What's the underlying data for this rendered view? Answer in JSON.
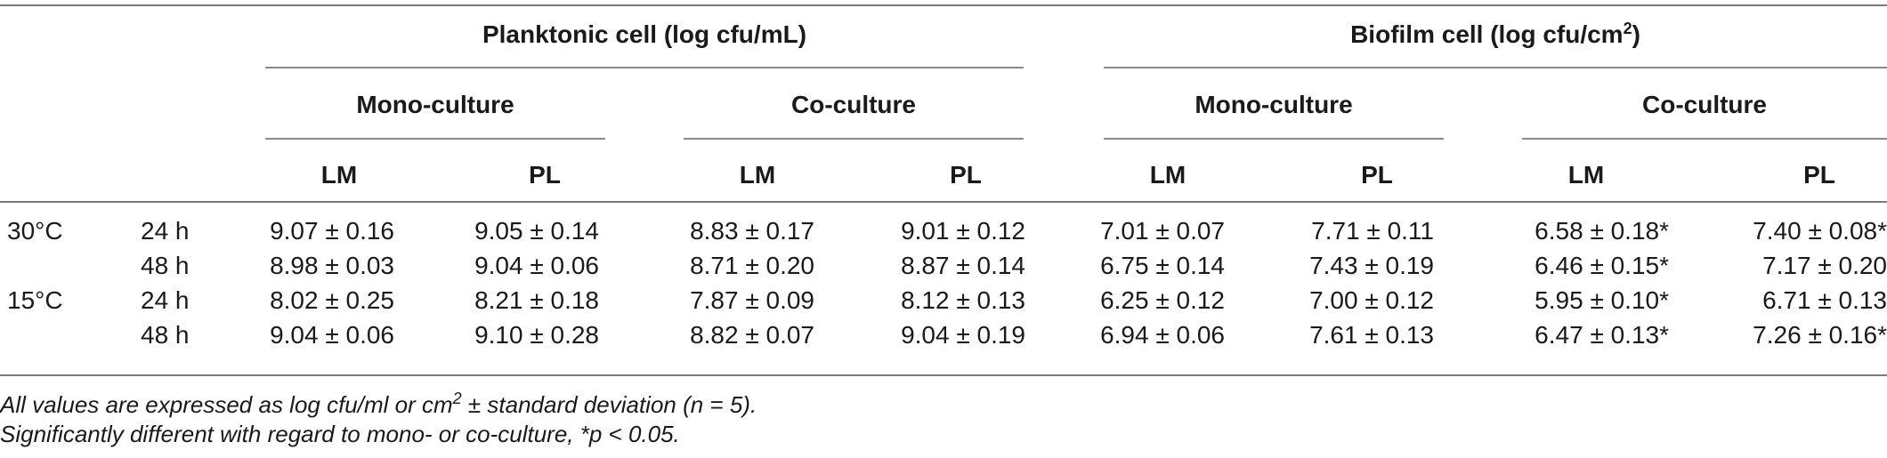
{
  "header": {
    "group1": "Planktonic cell (log cfu/mL)",
    "group2_prefix": "Biofilm cell (log cfu/cm",
    "group2_sup": "2",
    "group2_suffix": ")",
    "sub": [
      "Mono-culture",
      "Co-culture",
      "Mono-culture",
      "Co-culture"
    ],
    "cols": [
      "LM",
      "PL",
      "LM",
      "PL",
      "LM",
      "PL",
      "LM",
      "PL"
    ]
  },
  "rows": [
    {
      "temp": "30°C",
      "time": "24 h",
      "values": [
        "9.07 ± 0.16",
        "9.05 ± 0.14",
        "8.83 ± 0.17",
        "9.01 ± 0.12",
        "7.01 ± 0.07",
        "7.71 ± 0.11",
        "6.58 ± 0.18*",
        "7.40 ± 0.08*"
      ]
    },
    {
      "temp": "",
      "time": "48 h",
      "values": [
        "8.98 ± 0.03",
        "9.04 ± 0.06",
        "8.71 ± 0.20",
        "8.87 ± 0.14",
        "6.75 ± 0.14",
        "7.43 ± 0.19",
        "6.46 ± 0.15*",
        "7.17 ± 0.20"
      ]
    },
    {
      "temp": "15°C",
      "time": "24 h",
      "values": [
        "8.02 ± 0.25",
        "8.21 ± 0.18",
        "7.87 ± 0.09",
        "8.12 ± 0.13",
        "6.25 ± 0.12",
        "7.00 ± 0.12",
        "5.95 ± 0.10*",
        "6.71 ± 0.13"
      ]
    },
    {
      "temp": "",
      "time": "48 h",
      "values": [
        "9.04 ± 0.06",
        "9.10 ± 0.28",
        "8.82 ± 0.07",
        "9.04 ± 0.19",
        "6.94 ± 0.06",
        "7.61 ± 0.13",
        "6.47 ± 0.13*",
        "7.26 ± 0.16*"
      ]
    }
  ],
  "notes": {
    "line1_prefix": "All values are expressed as log cfu/ml or cm",
    "line1_sup": "2",
    "line1_suffix": " ± standard deviation (n = 5).",
    "line2": "Significantly different with regard to mono- or co-culture, *p < 0.05."
  }
}
